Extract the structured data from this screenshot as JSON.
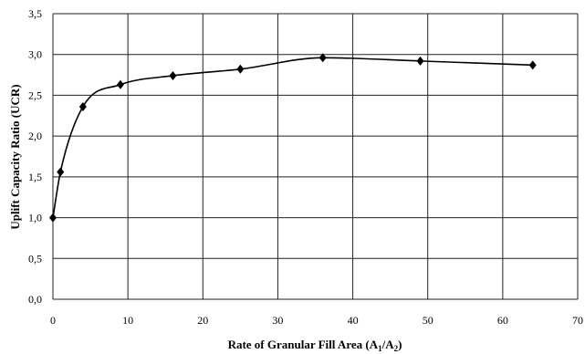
{
  "chart_data": {
    "type": "line",
    "title": "",
    "xlabel": {
      "main": "Rate of Granular Fill Area (A",
      "sub1": "1",
      "mid": "/A",
      "sub2": "2",
      "end": ")"
    },
    "ylabel": "Uplift Capacity  Ratio (UCR)",
    "xlim": [
      0,
      70
    ],
    "ylim": [
      0,
      3.5
    ],
    "x_ticks": [
      0,
      10,
      20,
      30,
      40,
      50,
      60,
      70
    ],
    "y_ticks": [
      0,
      0.5,
      1.0,
      1.5,
      2.0,
      2.5,
      3.0,
      3.5
    ],
    "x_tick_labels": [
      "0",
      "10",
      "20",
      "30",
      "40",
      "50",
      "60",
      "70"
    ],
    "y_tick_labels": [
      "0,0",
      "0,5",
      "1,0",
      "1,5",
      "2,0",
      "2,5",
      "3,0",
      "3,5"
    ],
    "grid": true,
    "series": [
      {
        "marker": "diamond",
        "color": "#000000",
        "smooth": true,
        "x": [
          0,
          1,
          4,
          9,
          16,
          25,
          36,
          49,
          64
        ],
        "y": [
          1.0,
          1.56,
          2.36,
          2.63,
          2.74,
          2.82,
          2.96,
          2.92,
          2.87
        ]
      }
    ]
  }
}
